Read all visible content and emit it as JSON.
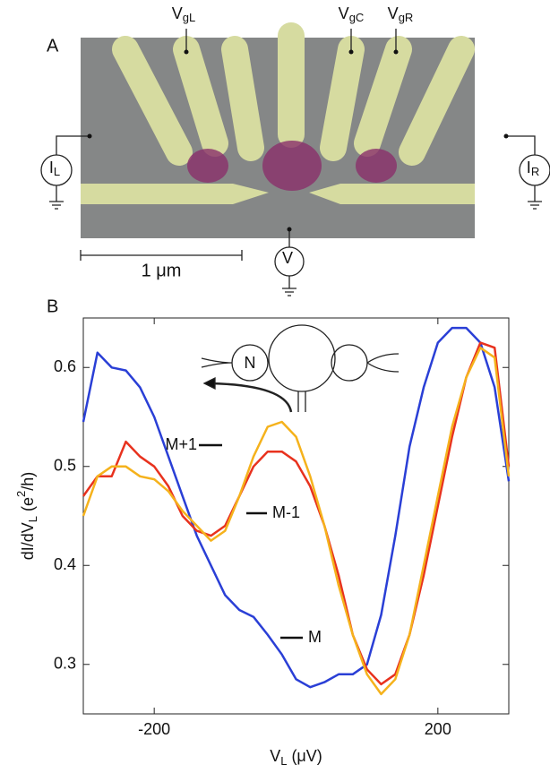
{
  "panel_a": {
    "label": "A",
    "gate_labels": [
      {
        "main": "V",
        "sub": "gL"
      },
      {
        "main": "V",
        "sub": "gC"
      },
      {
        "main": "V",
        "sub": "gR"
      }
    ],
    "meters": [
      {
        "main": "I",
        "sub": "L"
      },
      {
        "main": "I",
        "sub": "R"
      },
      {
        "main": "V",
        "sub": ""
      }
    ],
    "scale_bar": "1 μm"
  },
  "chart_data": {
    "type": "line",
    "panel_label": "B",
    "inset_label": "N",
    "xlabel": [
      {
        "text": "V",
        "style": "normal"
      },
      {
        "text": "L",
        "style": "sub"
      },
      {
        "text": " (μV)",
        "style": "normal"
      }
    ],
    "ylabel": [
      {
        "text": "dI/dV",
        "style": "normal"
      },
      {
        "text": "L",
        "style": "sub"
      },
      {
        "text": " (e",
        "style": "normal"
      },
      {
        "text": "2",
        "style": "sup"
      },
      {
        "text": "/h)",
        "style": "normal"
      }
    ],
    "x": [
      -300,
      -280,
      -260,
      -240,
      -220,
      -200,
      -180,
      -160,
      -140,
      -120,
      -100,
      -80,
      -60,
      -40,
      -20,
      0,
      20,
      40,
      60,
      80,
      100,
      120,
      140,
      160,
      180,
      200,
      220,
      240,
      260,
      280,
      300
    ],
    "series": [
      {
        "name": "M",
        "color": "#2a3fd6",
        "values": [
          0.545,
          0.615,
          0.6,
          0.597,
          0.58,
          0.55,
          0.51,
          0.47,
          0.43,
          0.4,
          0.37,
          0.355,
          0.348,
          0.33,
          0.31,
          0.285,
          0.277,
          0.282,
          0.29,
          0.29,
          0.3,
          0.35,
          0.43,
          0.52,
          0.58,
          0.625,
          0.64,
          0.64,
          0.625,
          0.58,
          0.485
        ]
      },
      {
        "name": "M-1",
        "color": "#e8321e",
        "values": [
          0.47,
          0.49,
          0.49,
          0.525,
          0.51,
          0.5,
          0.48,
          0.45,
          0.435,
          0.43,
          0.44,
          0.47,
          0.5,
          0.515,
          0.515,
          0.505,
          0.48,
          0.44,
          0.39,
          0.33,
          0.295,
          0.28,
          0.29,
          0.33,
          0.39,
          0.46,
          0.53,
          0.59,
          0.625,
          0.62,
          0.5
        ]
      },
      {
        "name": "M+1",
        "color": "#f5b21c",
        "values": [
          0.45,
          0.49,
          0.5,
          0.5,
          0.49,
          0.487,
          0.475,
          0.455,
          0.44,
          0.425,
          0.435,
          0.47,
          0.51,
          0.54,
          0.545,
          0.53,
          0.49,
          0.44,
          0.38,
          0.33,
          0.29,
          0.27,
          0.285,
          0.33,
          0.4,
          0.47,
          0.54,
          0.59,
          0.62,
          0.61,
          0.49
        ]
      }
    ],
    "xlim": [
      -300,
      300
    ],
    "ylim": [
      0.25,
      0.65
    ],
    "xticks": [
      -200,
      200
    ],
    "yticks": [
      0.3,
      0.4,
      0.5,
      0.6
    ]
  }
}
